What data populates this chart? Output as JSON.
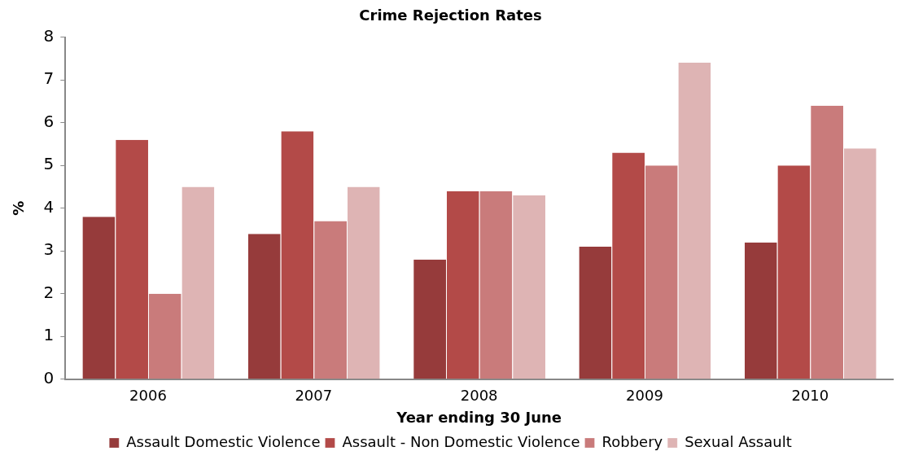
{
  "chart_data": {
    "type": "bar",
    "title": "Crime Rejection Rates",
    "xlabel": "Year ending 30 June",
    "ylabel": "%",
    "categories": [
      "2006",
      "2007",
      "2008",
      "2009",
      "2010"
    ],
    "series": [
      {
        "name": "Assault Domestic Violence",
        "color": "#963b3b",
        "values": [
          3.8,
          3.4,
          2.8,
          3.1,
          3.2
        ]
      },
      {
        "name": "Assault - Non Domestic Violence",
        "color": "#b34a48",
        "values": [
          5.6,
          5.8,
          4.4,
          5.3,
          5.0
        ]
      },
      {
        "name": "Robbery",
        "color": "#c97b7b",
        "values": [
          2.0,
          3.7,
          4.4,
          5.0,
          6.4
        ]
      },
      {
        "name": "Sexual Assault",
        "color": "#deb4b4",
        "values": [
          4.5,
          4.5,
          4.3,
          7.4,
          5.4
        ]
      }
    ],
    "ylim": [
      0,
      8
    ],
    "yticks": [
      0,
      1,
      2,
      3,
      4,
      5,
      6,
      7,
      8
    ],
    "grid": false,
    "legend": "bottom"
  }
}
